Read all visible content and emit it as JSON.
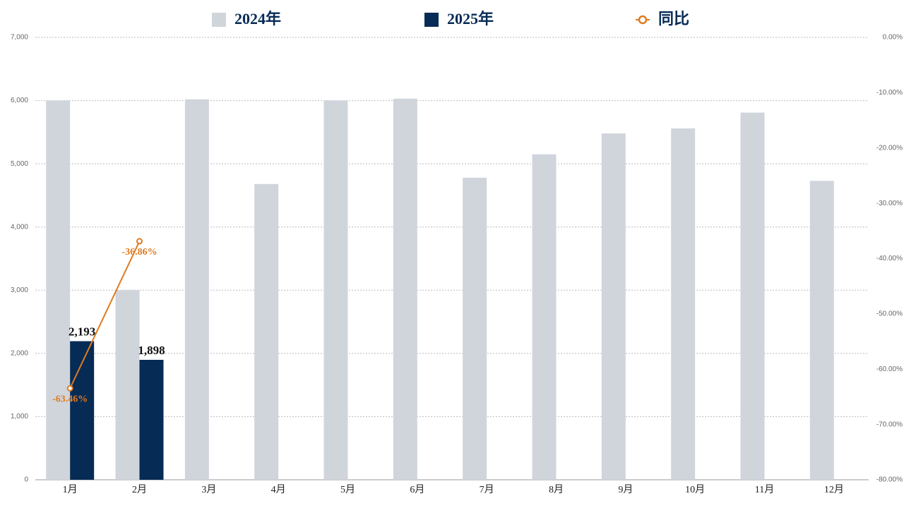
{
  "chart_data": {
    "type": "bar",
    "categories": [
      "1月",
      "2月",
      "3月",
      "4月",
      "5月",
      "6月",
      "7月",
      "8月",
      "9月",
      "10月",
      "11月",
      "12月"
    ],
    "series": [
      {
        "name": "2024年",
        "color": "#d0d5dc",
        "values": [
          6000,
          3000,
          6020,
          4680,
          6000,
          6030,
          4780,
          5150,
          5480,
          5560,
          5810,
          4730
        ]
      },
      {
        "name": "2025年",
        "color": "#062b55",
        "values": [
          2193,
          1898,
          null,
          null,
          null,
          null,
          null,
          null,
          null,
          null,
          null,
          null
        ],
        "value_labels": [
          "2,193",
          "1,898",
          null,
          null,
          null,
          null,
          null,
          null,
          null,
          null,
          null,
          null
        ]
      },
      {
        "name": "同比",
        "color": "#e07b20",
        "type": "line",
        "axis": "y2",
        "values": [
          -63.46,
          -36.86,
          null,
          null,
          null,
          null,
          null,
          null,
          null,
          null,
          null,
          null
        ],
        "value_labels": [
          "-63.46%",
          "-36.86%",
          null,
          null,
          null,
          null,
          null,
          null,
          null,
          null,
          null,
          null
        ]
      }
    ],
    "ylim": [
      0,
      7000
    ],
    "yticks": [
      0,
      {
        "value": 1000,
        "label": "1,000"
      },
      {
        "value": 2000,
        "label": "2,000"
      },
      {
        "value": 3000,
        "label": "3,000"
      },
      {
        "value": 4000,
        "label": "4,000"
      },
      {
        "value": 5000,
        "label": "5,000"
      },
      {
        "value": 6000,
        "label": "6,000"
      },
      {
        "value": 7000,
        "label": "7,000"
      }
    ],
    "y2lim": [
      -80,
      0
    ],
    "y2ticks": [
      {
        "value": 0,
        "label": "0.00%"
      },
      {
        "value": -10,
        "label": "-10.00%"
      },
      {
        "value": -20,
        "label": "-20.00%"
      },
      {
        "value": -30,
        "label": "-30.00%"
      },
      {
        "value": -40,
        "label": "-40.00%"
      },
      {
        "value": -50,
        "label": "-50.00%"
      },
      {
        "value": -60,
        "label": "-60.00%"
      },
      {
        "value": -70,
        "label": "-70.00%"
      },
      {
        "value": -80,
        "label": "-80.00%"
      }
    ],
    "grid": true
  }
}
